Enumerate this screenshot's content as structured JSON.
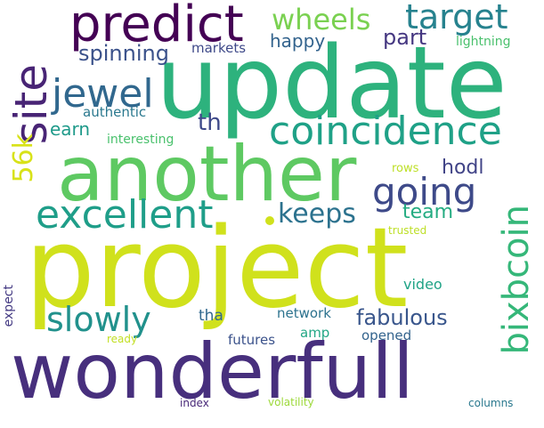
{
  "words": {
    "project": {
      "text": "project",
      "color": "#d0e11c"
    },
    "update": {
      "text": "update",
      "color": "#2db27d"
    },
    "another": {
      "text": "another",
      "color": "#5ec962"
    },
    "wonderfull": {
      "text": "wonderfull",
      "color": "#472f7d"
    },
    "predict": {
      "text": "predict",
      "color": "#440154"
    },
    "coincidence": {
      "text": "coincidence",
      "color": "#1fa187"
    },
    "excellent": {
      "text": "excellent",
      "color": "#1f9e89"
    },
    "going": {
      "text": "going",
      "color": "#3e4a89"
    },
    "jewel": {
      "text": "jewel",
      "color": "#31688e"
    },
    "site": {
      "text": "site",
      "color": "#482475"
    },
    "slowly": {
      "text": "slowly",
      "color": "#21918c"
    },
    "target": {
      "text": "target",
      "color": "#26828e"
    },
    "wheels": {
      "text": "wheels",
      "color": "#7ad151"
    },
    "keeps": {
      "text": "keeps",
      "color": "#2c728e"
    },
    "bixbcoin": {
      "text": "bixbcoin",
      "color": "#35b779"
    },
    "fabulous": {
      "text": "fabulous",
      "color": "#39568c"
    },
    "56k": {
      "text": "56k",
      "color": "#d8e219"
    },
    "spinning": {
      "text": "spinning",
      "color": "#3b528b"
    },
    "happy": {
      "text": "happy",
      "color": "#33638d"
    },
    "part": {
      "text": "part",
      "color": "#453781"
    },
    "earn": {
      "text": "earn",
      "color": "#1f9a8a"
    },
    "th": {
      "text": "th",
      "color": "#3e4989"
    },
    "hodl": {
      "text": "hodl",
      "color": "#414487"
    },
    "team": {
      "text": "team",
      "color": "#25ac82"
    },
    "trusted": {
      "text": "trusted",
      "color": "#bddf26"
    },
    "markets": {
      "text": "markets",
      "color": "#3e4989"
    },
    "lightning": {
      "text": "lightning",
      "color": "#4ac16d"
    },
    "authentic": {
      "text": "authentic",
      "color": "#2a788e"
    },
    "interesting": {
      "text": "interesting",
      "color": "#4ac16d"
    },
    "rows": {
      "text": "rows",
      "color": "#bddf26"
    },
    "video": {
      "text": "video",
      "color": "#20a386"
    },
    "network": {
      "text": "network",
      "color": "#2c728e"
    },
    "tha": {
      "text": "tha",
      "color": "#31688e"
    },
    "amp": {
      "text": "amp",
      "color": "#22a785"
    },
    "futures": {
      "text": "futures",
      "color": "#3b528b"
    },
    "opened": {
      "text": "opened",
      "color": "#33638d"
    },
    "ready": {
      "text": "ready",
      "color": "#c2df23"
    },
    "expect": {
      "text": "expect",
      "color": "#443a83"
    },
    "index": {
      "text": "index",
      "color": "#482878"
    },
    "volatility": {
      "text": "volatility",
      "color": "#9dd93b"
    },
    "columns": {
      "text": "columns",
      "color": "#2a788e"
    }
  },
  "dot_color": "#d0e11c",
  "background": "#ffffff"
}
